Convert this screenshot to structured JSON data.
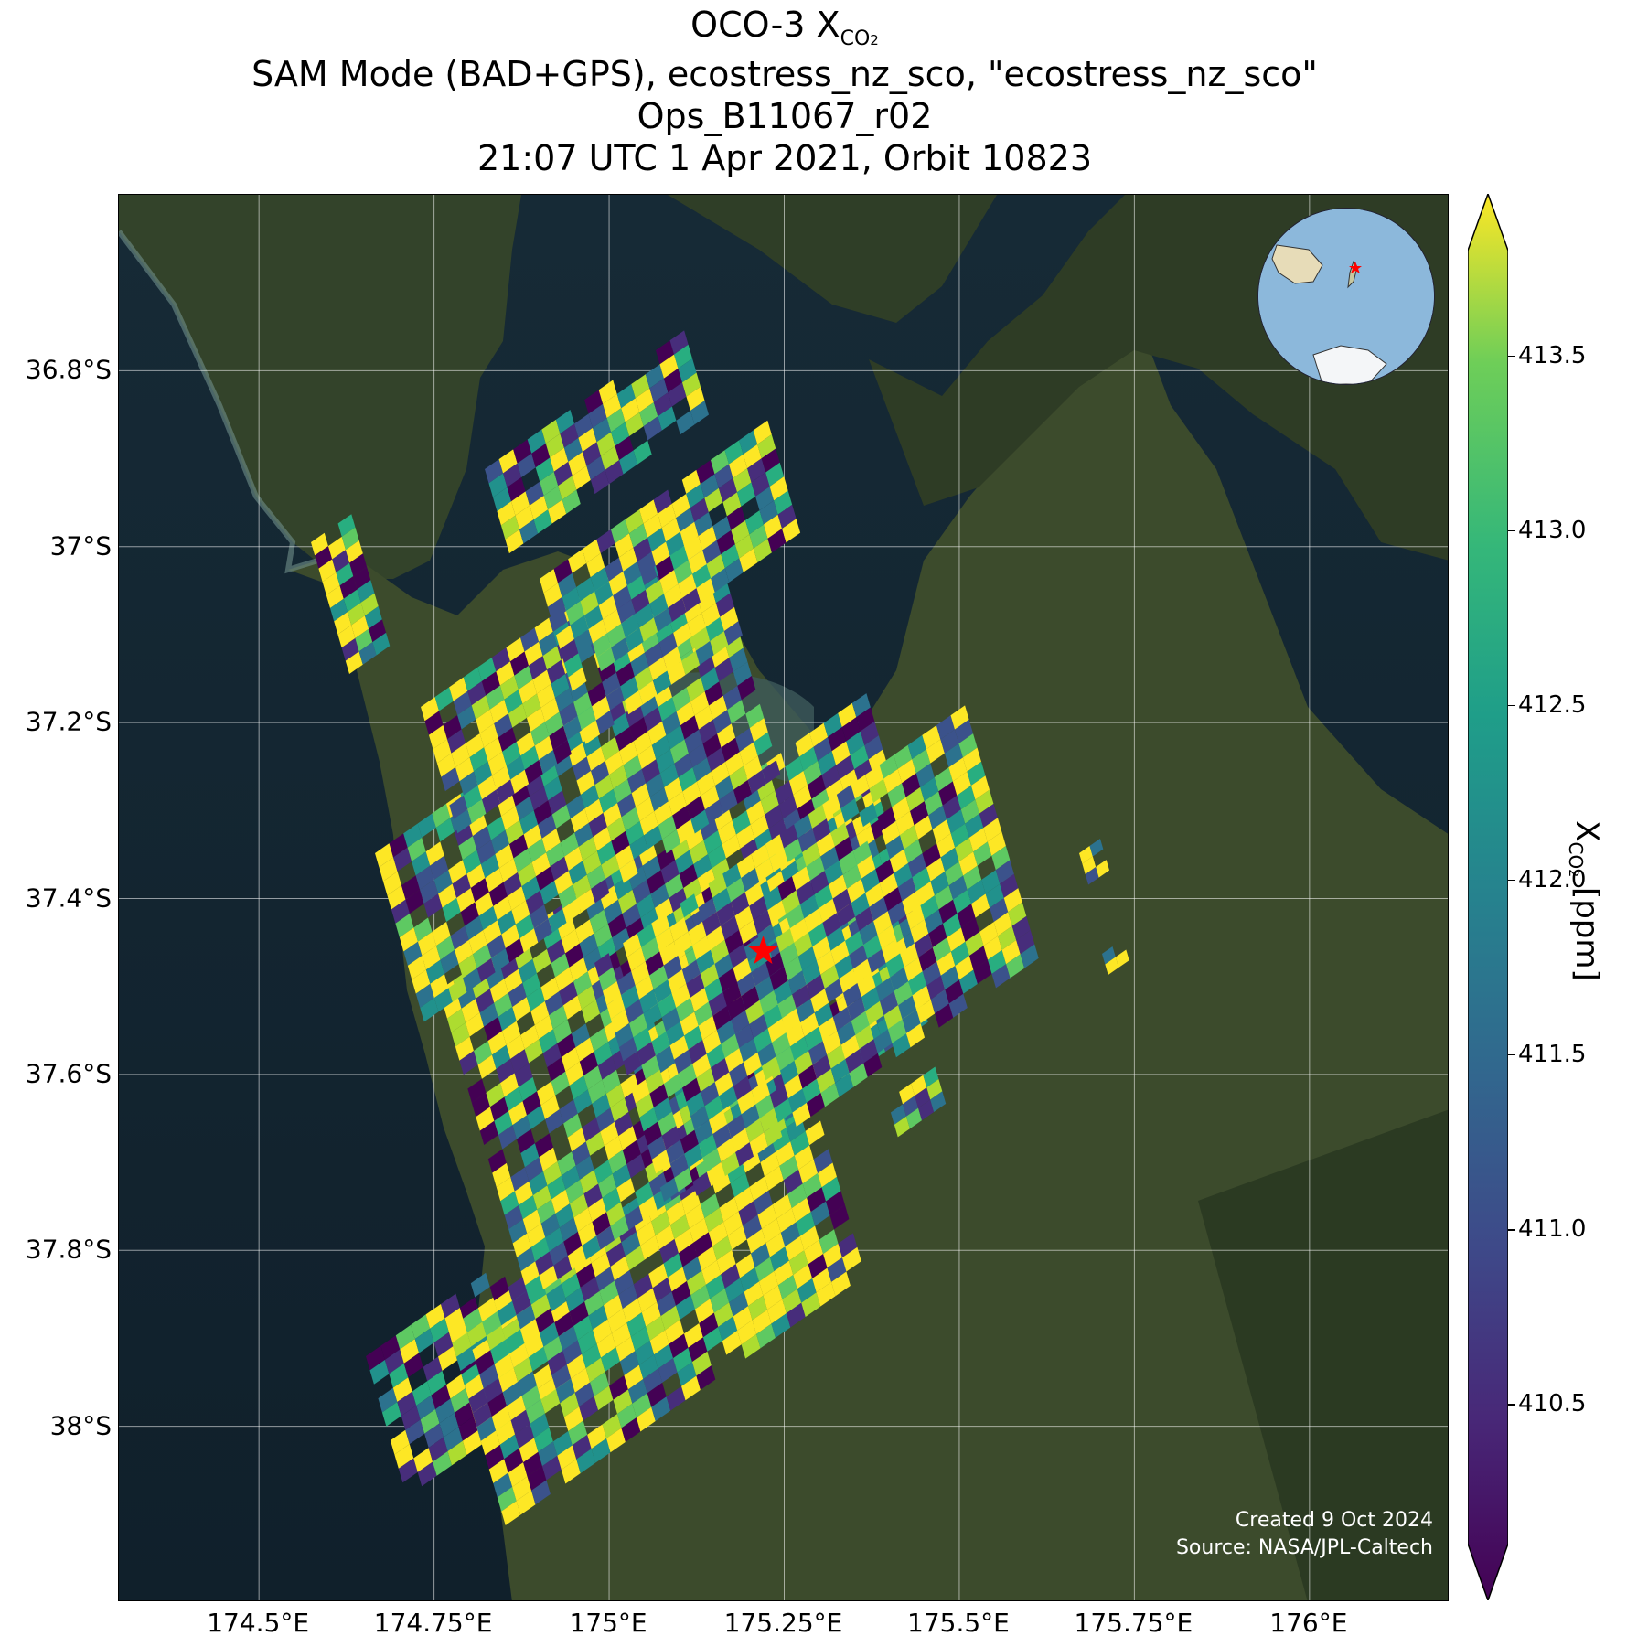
{
  "title": {
    "line1_prefix": "OCO-3 X",
    "line1_sub": "CO",
    "line1_sub2": "2",
    "line2": "SAM Mode (BAD+GPS), ecostress_nz_sco, \"ecostress_nz_sco\"",
    "line3": "Ops_B11067_r02",
    "line4": "21:07 UTC 1 Apr 2021, Orbit 10823"
  },
  "map": {
    "lat_labels": [
      "36.8°S",
      "37°S",
      "37.2°S",
      "37.4°S",
      "37.6°S",
      "37.8°S",
      "38°S"
    ],
    "lon_labels": [
      "174.5°E",
      "174.75°E",
      "175°E",
      "175.25°E",
      "175.5°E",
      "175.75°E",
      "176°E"
    ],
    "lat_values": [
      -36.8,
      -37.0,
      -37.2,
      -37.4,
      -37.6,
      -37.8,
      -38.0
    ],
    "lon_values": [
      174.5,
      174.75,
      175.0,
      175.25,
      175.5,
      175.75,
      176.0
    ],
    "lon_range": [
      174.3,
      176.2
    ],
    "lat_range": [
      -36.6,
      -38.2
    ],
    "gridlines": true,
    "basemap": "satellite imagery",
    "target_marker": {
      "lon": 175.22,
      "lat": -37.46,
      "color": "#ff0000",
      "icon": "star-icon"
    },
    "inset": "orthographic globe centered on New Zealand with red star marker"
  },
  "colorbar": {
    "label_prefix": "X",
    "label_sub": "CO",
    "label_sub2": "2",
    "label_suffix": " [ppm]",
    "ticks": [
      "410.5",
      "411.0",
      "411.5",
      "412.0",
      "412.5",
      "413.0",
      "413.5"
    ],
    "tick_values": [
      410.5,
      411.0,
      411.5,
      412.0,
      412.5,
      413.0,
      413.5
    ],
    "range": [
      410.1,
      413.8
    ],
    "colormap": "viridis",
    "extend": "both"
  },
  "credit": {
    "line1": "Created 9 Oct 2024",
    "line2": "Source: NASA/JPL-Caltech"
  }
}
